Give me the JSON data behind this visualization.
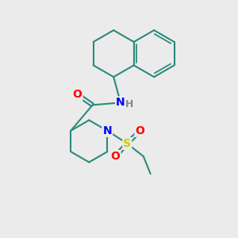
{
  "bg_color": "#ebebeb",
  "bond_color": "#2d8a7a",
  "bond_width": 1.5,
  "atom_colors": {
    "N": "#0000ff",
    "O": "#ff0000",
    "S": "#cccc00",
    "H": "#888888",
    "C": "#2d8a7a"
  },
  "font_size": 9,
  "figsize": [
    3.0,
    3.0
  ],
  "dpi": 100
}
